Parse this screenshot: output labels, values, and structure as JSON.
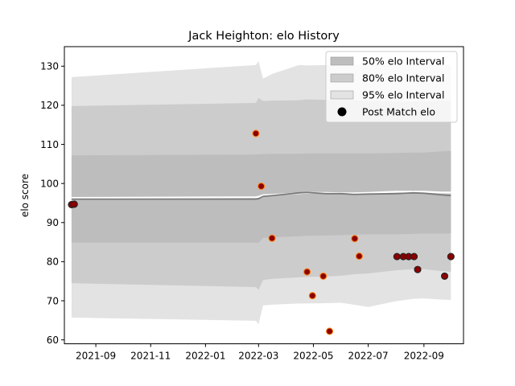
{
  "chart_data": {
    "type": "area",
    "title": "Jack Heighton: elo History",
    "xlabel": "",
    "ylabel": "elo score",
    "xlim": [
      "2021-07-28",
      "2022-10-15"
    ],
    "ylim": [
      59,
      135
    ],
    "x_ticks": [
      "2021-09",
      "2021-11",
      "2022-01",
      "2022-03",
      "2022-05",
      "2022-07",
      "2022-09"
    ],
    "y_ticks": [
      60,
      70,
      80,
      90,
      100,
      110,
      120,
      130
    ],
    "grid": false,
    "legend_position": "top-right",
    "colors": {
      "band95": "#e3e3e3",
      "band80": "#cccccc",
      "band50": "#bdbdbd",
      "mean_line": "#ffffff",
      "median_line": "#7a7a7a",
      "marker_fill": "#8b0000",
      "marker_edge_orange": "#ff7f0e",
      "marker_edge_dark": "#222222"
    },
    "legend": [
      {
        "label": "50% elo Interval",
        "key": "band50"
      },
      {
        "label": "80% elo Interval",
        "key": "band80"
      },
      {
        "label": "95% elo Interval",
        "key": "band95"
      },
      {
        "label": "Post Match elo",
        "key": "marker"
      }
    ],
    "bands": {
      "dates": [
        "2021-08-05",
        "2022-02-26",
        "2022-03-01",
        "2022-03-06",
        "2022-03-16",
        "2022-04-15",
        "2022-04-24",
        "2022-05-15",
        "2022-06-01",
        "2022-06-15",
        "2022-07-01",
        "2022-08-01",
        "2022-08-20",
        "2022-09-01",
        "2022-09-20",
        "2022-10-01"
      ],
      "p95_upper": [
        127.2,
        130.3,
        131.3,
        126.8,
        128.0,
        130.3,
        130.2,
        130.3,
        130.3,
        130.3,
        130.3,
        130.3,
        130.3,
        130.3,
        130.3,
        130.3
      ],
      "p80_upper": [
        119.8,
        120.6,
        121.9,
        121.1,
        121.2,
        121.3,
        121.5,
        121.4,
        121.4,
        121.3,
        121.1,
        121.0,
        121.0,
        121.0,
        121.2,
        121.2
      ],
      "p50_upper": [
        107.2,
        107.4,
        107.5,
        107.5,
        107.6,
        107.6,
        107.7,
        107.7,
        107.7,
        107.7,
        107.7,
        107.8,
        107.9,
        107.9,
        108.2,
        108.3
      ],
      "mean": [
        96.3,
        96.5,
        96.6,
        97.0,
        97.1,
        97.5,
        97.6,
        97.6,
        97.5,
        97.5,
        97.6,
        97.9,
        97.9,
        97.9,
        97.7,
        97.7
      ],
      "median": [
        96.0,
        96.0,
        96.1,
        96.7,
        96.9,
        97.6,
        97.7,
        97.4,
        97.4,
        97.2,
        97.3,
        97.4,
        97.6,
        97.5,
        97.1,
        96.9
      ],
      "p50_lower": [
        84.9,
        84.9,
        84.8,
        86.1,
        86.2,
        86.5,
        86.6,
        86.7,
        86.8,
        86.9,
        87.0,
        87.0,
        87.1,
        87.2,
        87.2,
        87.2
      ],
      "p80_lower": [
        74.5,
        73.5,
        72.8,
        75.3,
        75.6,
        76.0,
        76.1,
        76.2,
        76.4,
        76.8,
        77.0,
        77.8,
        78.1,
        78.1,
        77.6,
        77.4
      ],
      "p95_lower": [
        65.7,
        64.9,
        64.0,
        68.8,
        69.0,
        69.3,
        69.3,
        69.4,
        69.5,
        69.0,
        68.4,
        69.9,
        70.5,
        70.6,
        70.3,
        70.2
      ]
    },
    "points": [
      {
        "date": "2021-08-05",
        "elo": 94.6,
        "edge": "dark"
      },
      {
        "date": "2021-08-08",
        "elo": 94.7,
        "edge": "dark"
      },
      {
        "date": "2022-02-26",
        "elo": 112.8,
        "edge": "orange"
      },
      {
        "date": "2022-03-04",
        "elo": 99.3,
        "edge": "orange"
      },
      {
        "date": "2022-03-16",
        "elo": 86.0,
        "edge": "orange"
      },
      {
        "date": "2022-04-24",
        "elo": 77.4,
        "edge": "orange"
      },
      {
        "date": "2022-04-30",
        "elo": 71.3,
        "edge": "orange"
      },
      {
        "date": "2022-05-12",
        "elo": 76.3,
        "edge": "orange"
      },
      {
        "date": "2022-05-19",
        "elo": 62.2,
        "edge": "orange"
      },
      {
        "date": "2022-06-16",
        "elo": 85.9,
        "edge": "orange"
      },
      {
        "date": "2022-06-21",
        "elo": 81.4,
        "edge": "orange"
      },
      {
        "date": "2022-08-02",
        "elo": 81.3,
        "edge": "dark"
      },
      {
        "date": "2022-08-09",
        "elo": 81.3,
        "edge": "dark"
      },
      {
        "date": "2022-08-15",
        "elo": 81.3,
        "edge": "dark"
      },
      {
        "date": "2022-08-21",
        "elo": 81.3,
        "edge": "dark"
      },
      {
        "date": "2022-08-25",
        "elo": 78.0,
        "edge": "dark"
      },
      {
        "date": "2022-09-24",
        "elo": 76.3,
        "edge": "dark"
      },
      {
        "date": "2022-10-01",
        "elo": 81.3,
        "edge": "dark"
      }
    ]
  }
}
